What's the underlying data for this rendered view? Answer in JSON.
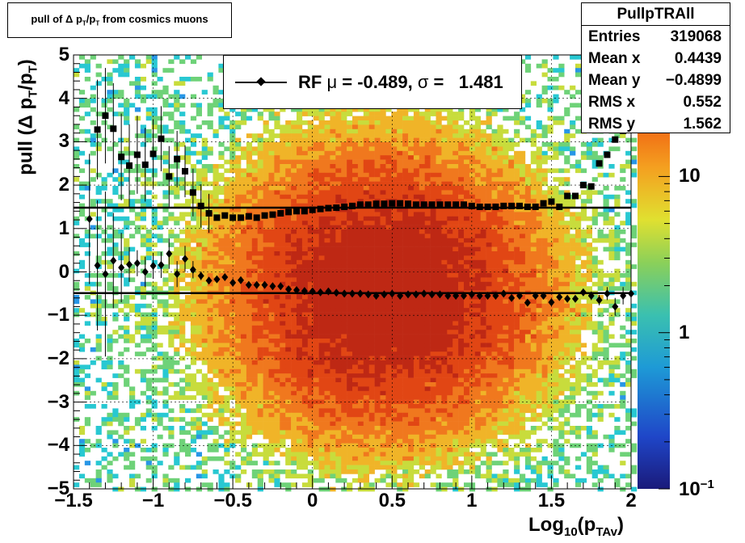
{
  "chart_data": {
    "type": "heatmap",
    "title": "pull of Δ p_T/p_T from cosmics muons",
    "title_main": "pull of Δ p",
    "title_sub1": "T",
    "title_mid": "/p",
    "title_sub2": "T",
    "title_tail": " from cosmics muons",
    "xlabel_main": "Log",
    "xlabel_sub1": "10",
    "xlabel_mid": "(p",
    "xlabel_sub2": "TAv",
    "xlabel_tail": ")",
    "ylabel_main": "pull (Δ p",
    "ylabel_sub1": "T",
    "ylabel_mid": "/p",
    "ylabel_sub2": "T",
    "ylabel_tail": ")",
    "xlim": [
      -1.5,
      2
    ],
    "ylim": [
      -5,
      5
    ],
    "x_ticks": [
      "−1.5",
      "−1",
      "−0.5",
      "0",
      "0.5",
      "1",
      "1.5",
      "2"
    ],
    "x_tick_values": [
      -1.5,
      -1,
      -0.5,
      0,
      0.5,
      1,
      1.5,
      2
    ],
    "y_ticks": [
      "5",
      "4",
      "3",
      "2",
      "1",
      "0",
      "−1",
      "−2",
      "−3",
      "−4",
      "−5"
    ],
    "y_tick_values": [
      5,
      4,
      3,
      2,
      1,
      0,
      -1,
      -2,
      -3,
      -4,
      -5
    ],
    "colorbar": {
      "scale": "log",
      "range": [
        0.1,
        60
      ],
      "ticks": [
        {
          "value": 10,
          "label": "10"
        },
        {
          "value": 1,
          "label": "1"
        },
        {
          "value": 0.1,
          "label": "10",
          "exp": "−1"
        }
      ]
    },
    "stats": {
      "name": "PullpTRAll",
      "rows": [
        {
          "label": "Entries",
          "value": "319068"
        },
        {
          "label": "Mean x",
          "value": "0.4439"
        },
        {
          "label": "Mean y",
          "value": "−0.4899"
        },
        {
          "label": "RMS x",
          "value": "0.552"
        },
        {
          "label": "RMS y",
          "value": "1.562"
        }
      ]
    },
    "legend": {
      "text_prefix": "RF ",
      "mu_symbol": "μ",
      "mu_text": " = -0.489, ",
      "sigma_symbol": "σ",
      "sigma_text": " =   1.481"
    },
    "mean_line": -0.489,
    "sigma_line": 1.481,
    "mean_series": {
      "name": "mean",
      "x": [
        -1.4,
        -1.35,
        -1.3,
        -1.25,
        -1.2,
        -1.15,
        -1.1,
        -1.05,
        -1,
        -0.95,
        -0.9,
        -0.85,
        -0.8,
        -0.75,
        -0.7,
        -0.65,
        -0.6,
        -0.55,
        -0.5,
        -0.45,
        -0.4,
        -0.35,
        -0.3,
        -0.25,
        -0.2,
        -0.15,
        -0.1,
        -0.05,
        0,
        0.05,
        0.1,
        0.15,
        0.2,
        0.25,
        0.3,
        0.35,
        0.4,
        0.45,
        0.5,
        0.55,
        0.6,
        0.65,
        0.7,
        0.75,
        0.8,
        0.85,
        0.9,
        0.95,
        1,
        1.05,
        1.1,
        1.15,
        1.2,
        1.25,
        1.3,
        1.35,
        1.4,
        1.45,
        1.5,
        1.55,
        1.6,
        1.65,
        1.7,
        1.75,
        1.8,
        1.85,
        1.9,
        1.95,
        2
      ],
      "y": [
        1.22,
        0.15,
        -0.05,
        0.26,
        0.1,
        0.17,
        0.2,
        0,
        0.14,
        0.16,
        0.42,
        -0.05,
        0.3,
        0.05,
        -0.09,
        -0.2,
        -0.17,
        -0.12,
        -0.25,
        -0.19,
        -0.3,
        -0.3,
        -0.3,
        -0.33,
        -0.33,
        -0.4,
        -0.42,
        -0.44,
        -0.45,
        -0.47,
        -0.45,
        -0.48,
        -0.5,
        -0.5,
        -0.5,
        -0.52,
        -0.55,
        -0.52,
        -0.5,
        -0.55,
        -0.52,
        -0.52,
        -0.5,
        -0.52,
        -0.52,
        -0.55,
        -0.55,
        -0.55,
        -0.52,
        -0.55,
        -0.55,
        -0.55,
        -0.5,
        -0.6,
        -0.55,
        -0.71,
        -0.55,
        -0.55,
        -0.7,
        -0.58,
        -0.62,
        -0.62,
        -0.47,
        -0.55,
        -0.65,
        -0.5,
        -0.8,
        -0.55,
        -0.5
      ],
      "err": [
        1.5,
        1.5,
        1.9,
        1.1,
        0.8,
        0.4,
        0.3,
        0.35,
        0.3,
        0.3,
        0.35,
        0.3,
        0.3,
        0.2,
        0.1,
        0.06,
        0.05,
        0.04,
        0.03,
        0.03,
        0.03,
        0.02,
        0.02,
        0.02,
        0.02,
        0.02,
        0.02,
        0.02,
        0.02,
        0.02,
        0.02,
        0.02,
        0.02,
        0.02,
        0.02,
        0.02,
        0.02,
        0.02,
        0.02,
        0.02,
        0.02,
        0.02,
        0.02,
        0.02,
        0.02,
        0.02,
        0.02,
        0.02,
        0.02,
        0.02,
        0.02,
        0.02,
        0.02,
        0.02,
        0.02,
        0.05,
        0.05,
        0.06,
        0.06,
        0.06,
        0.08,
        0.08,
        0.08,
        0.1,
        0.12,
        0.15,
        0.2,
        0.2,
        0.2
      ]
    },
    "sigma_series": {
      "name": "sigma",
      "x": [
        -1.35,
        -1.3,
        -1.25,
        -1.2,
        -1.15,
        -1.1,
        -1.05,
        -1,
        -0.95,
        -0.9,
        -0.85,
        -0.8,
        -0.75,
        -0.7,
        -0.65,
        -0.6,
        -0.55,
        -0.5,
        -0.45,
        -0.4,
        -0.35,
        -0.3,
        -0.25,
        -0.2,
        -0.15,
        -0.1,
        -0.05,
        0,
        0.05,
        0.1,
        0.15,
        0.2,
        0.25,
        0.3,
        0.35,
        0.4,
        0.45,
        0.5,
        0.55,
        0.6,
        0.65,
        0.7,
        0.75,
        0.8,
        0.85,
        0.9,
        0.95,
        1,
        1.05,
        1.1,
        1.15,
        1.2,
        1.25,
        1.3,
        1.35,
        1.4,
        1.45,
        1.5,
        1.55,
        1.6,
        1.65,
        1.7,
        1.75,
        1.8,
        1.85,
        1.9,
        1.95,
        2
      ],
      "y": [
        3.28,
        3.6,
        3.3,
        2.65,
        2.45,
        2.7,
        2.47,
        2.72,
        3.07,
        2.2,
        2.6,
        2.32,
        1.83,
        1.52,
        1.35,
        1.25,
        1.3,
        1.25,
        1.25,
        1.28,
        1.25,
        1.3,
        1.32,
        1.35,
        1.38,
        1.4,
        1.4,
        1.43,
        1.45,
        1.47,
        1.48,
        1.5,
        1.52,
        1.55,
        1.55,
        1.57,
        1.57,
        1.58,
        1.58,
        1.57,
        1.55,
        1.55,
        1.55,
        1.55,
        1.55,
        1.55,
        1.55,
        1.52,
        1.5,
        1.5,
        1.5,
        1.52,
        1.52,
        1.52,
        1.5,
        1.5,
        1.58,
        1.62,
        1.5,
        1.75,
        1.75,
        2.0,
        1.97,
        2.5,
        2.7,
        3.05,
        3.25,
        3.6
      ]
    }
  }
}
